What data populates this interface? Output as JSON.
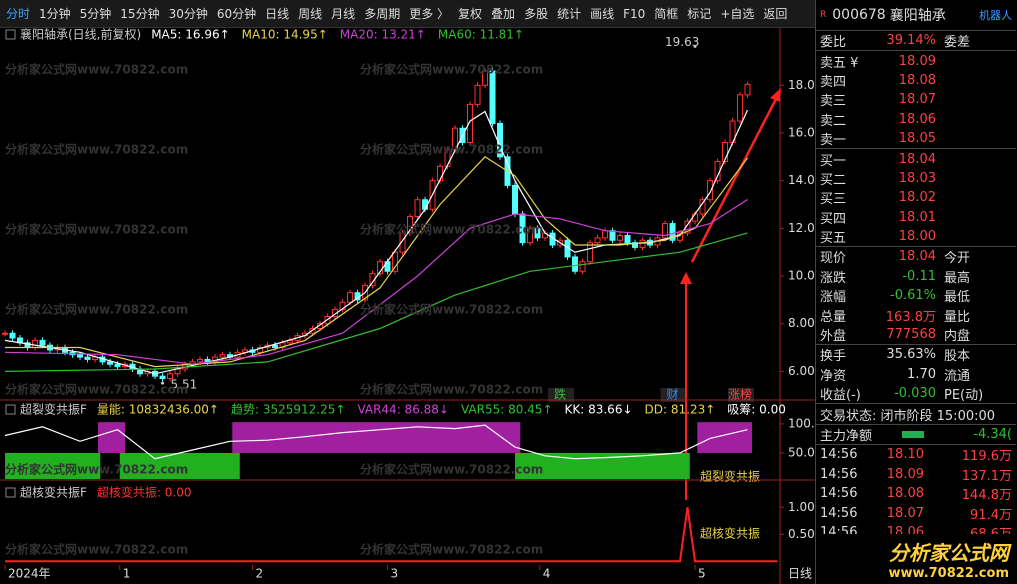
{
  "toolbar": {
    "tabs": [
      "分时",
      "1分钟",
      "5分钟",
      "15分钟",
      "30分钟",
      "60分钟",
      "日线",
      "周线",
      "月线",
      "多周期",
      "更多 〉",
      "复权",
      "叠加",
      "多股",
      "统计",
      "画线",
      "F10",
      "简框",
      "标记",
      "+自选",
      "返回"
    ]
  },
  "watermark": "分析家公式网www.70822.com",
  "logo": {
    "title": "分析家公式网",
    "url": "www.70822.com"
  },
  "chart_data": [
    {
      "type": "candlestick",
      "title": "襄阳轴承(日线,前复权)",
      "header": [
        "MA5: 16.96↑",
        "MA10: 14.95↑",
        "MA20: 13.21↑",
        "MA60: 11.81↑"
      ],
      "xlim": [
        -0.67,
        103.33
      ],
      "ylim": [
        4.8,
        19.9
      ],
      "yticks": [
        {
          "value": 6,
          "label": "6.00"
        },
        {
          "value": 8,
          "label": "8.00"
        },
        {
          "value": 10,
          "label": "10.00"
        },
        {
          "value": 12,
          "label": "12.00"
        },
        {
          "value": 14,
          "label": "14.00"
        },
        {
          "value": 16,
          "label": "16.00"
        },
        {
          "value": 18,
          "label": "18.00"
        }
      ],
      "xticks": [
        {
          "value": 0,
          "label": "2024年"
        },
        {
          "value": 15.3,
          "label": "1"
        },
        {
          "value": 33,
          "label": "2"
        },
        {
          "value": 51,
          "label": "3"
        },
        {
          "value": 71.3,
          "label": "4"
        },
        {
          "value": 92,
          "label": "5"
        }
      ],
      "period_label": "日线",
      "closes": [
        7.6,
        7.4,
        7.2,
        7.0,
        7.3,
        7.1,
        6.9,
        7.0,
        6.8,
        6.7,
        6.6,
        6.5,
        6.6,
        6.4,
        6.3,
        6.2,
        6.3,
        6.1,
        5.9,
        6.0,
        5.8,
        5.7,
        5.9,
        6.1,
        6.3,
        6.4,
        6.5,
        6.4,
        6.6,
        6.7,
        6.6,
        6.8,
        6.9,
        6.8,
        7.0,
        7.1,
        7.0,
        7.2,
        7.3,
        7.5,
        7.6,
        7.8,
        8.0,
        8.3,
        8.6,
        8.9,
        9.3,
        9.0,
        9.6,
        10.1,
        10.6,
        10.2,
        11.0,
        11.8,
        12.5,
        13.2,
        12.8,
        14.0,
        14.6,
        15.3,
        16.2,
        15.6,
        17.2,
        18.0,
        18.6,
        16.4,
        15.0,
        13.8,
        12.6,
        11.4,
        12.0,
        11.6,
        11.8,
        11.3,
        11.5,
        10.8,
        10.2,
        10.6,
        11.4,
        11.6,
        11.9,
        11.5,
        11.7,
        11.4,
        11.2,
        11.5,
        11.3,
        11.6,
        12.2,
        11.5,
        11.8,
        12.3,
        12.6,
        13.2,
        14.0,
        14.8,
        15.6,
        16.5,
        17.6,
        18.04
      ],
      "series": [
        {
          "name": "MA5",
          "color": "#ffffff",
          "x": [
            0,
            10,
            20,
            30,
            40,
            48,
            56,
            62,
            64,
            68,
            72,
            76,
            80,
            86,
            90,
            94,
            99
          ],
          "values": [
            7.3,
            6.8,
            5.9,
            6.6,
            7.5,
            9.3,
            12.8,
            16.5,
            16.9,
            14.0,
            11.8,
            11.0,
            11.3,
            11.4,
            11.7,
            13.5,
            16.96
          ]
        },
        {
          "name": "MA10",
          "color": "#e8d44a",
          "x": [
            0,
            10,
            20,
            30,
            40,
            50,
            58,
            64,
            68,
            72,
            76,
            82,
            88,
            92,
            99
          ],
          "values": [
            7.0,
            7.0,
            6.2,
            6.4,
            7.3,
            9.5,
            13.0,
            15.0,
            14.2,
            12.4,
            11.3,
            11.3,
            11.5,
            12.0,
            14.95
          ]
        },
        {
          "name": "MA20",
          "color": "#d040d8",
          "x": [
            0,
            15,
            25,
            35,
            45,
            55,
            62,
            68,
            74,
            80,
            88,
            94,
            99
          ],
          "values": [
            6.8,
            6.7,
            6.3,
            6.7,
            7.6,
            10.0,
            12.0,
            12.6,
            12.4,
            11.9,
            11.7,
            12.2,
            13.21
          ]
        },
        {
          "name": "MA60",
          "color": "#30c030",
          "x": [
            0,
            20,
            35,
            50,
            60,
            70,
            80,
            90,
            99
          ],
          "values": [
            6.0,
            6.1,
            6.4,
            7.8,
            9.2,
            10.2,
            10.6,
            11.0,
            11.81
          ]
        }
      ],
      "annotations": [
        {
          "text": "19.63",
          "x": 92,
          "y": 19.63
        },
        {
          "text": "5.51",
          "x": 21,
          "y": 5.51
        }
      ],
      "tags": [
        {
          "text": "跌",
          "x": 74,
          "color": "#30c030"
        },
        {
          "text": "财",
          "x": 89,
          "color": "#3090ff"
        },
        {
          "text": "涨榜",
          "x": 98,
          "color": "#ff4040"
        }
      ]
    },
    {
      "type": "line",
      "title": "超裂变共振F",
      "header": [
        "量能: 10832436.00↑",
        "趋势: 3525912.25↑",
        "VAR44: 86.88↓",
        "VAR55: 80.45↑",
        "KK: 83.66↓",
        "DD: 81.23↑",
        "吸筹: 0.00"
      ],
      "xlim": [
        -0.67,
        103.33
      ],
      "ylim": [
        3.4,
        136
      ],
      "yticks": [
        {
          "value": 100,
          "label": "100.0"
        },
        {
          "value": 50,
          "label": "50.00"
        }
      ],
      "zones": [
        {
          "color": "#a020a0",
          "start": 12.4,
          "end": 16
        },
        {
          "color": "#a020a0",
          "start": 30.3,
          "end": 68.7
        },
        {
          "color": "#a020a0",
          "start": 92.3,
          "end": 99.6
        },
        {
          "color": "#20b020",
          "start": 0,
          "end": 12.7
        },
        {
          "color": "#20b020",
          "start": 15.3,
          "end": 31.3
        },
        {
          "color": "#20b020",
          "start": 68,
          "end": 91.3
        }
      ],
      "series": [
        {
          "color": "#ffffff",
          "x": [
            0,
            5,
            10,
            15,
            20,
            25,
            30,
            35,
            40,
            45,
            50,
            55,
            60,
            64,
            68,
            72,
            76,
            80,
            85,
            90,
            94,
            99
          ],
          "values": [
            80,
            95,
            70,
            90,
            40,
            55,
            70,
            72,
            78,
            85,
            90,
            95,
            92,
            98,
            60,
            45,
            40,
            42,
            45,
            50,
            75,
            90
          ]
        }
      ],
      "annotation": "超裂变共振"
    },
    {
      "type": "line",
      "title": "超核变共振F",
      "header": [
        "超核变共振: 0.00"
      ],
      "xlim": [
        -0.67,
        103.33
      ],
      "ylim": [
        -0.07,
        1.45
      ],
      "yticks": [
        {
          "value": 1,
          "label": "1.00"
        },
        {
          "value": 0.5,
          "label": "0.50"
        }
      ],
      "series": [
        {
          "color": "#ff2020",
          "x": [
            0,
            90,
            91,
            92,
            103
          ],
          "values": [
            0,
            0,
            1,
            0,
            0
          ]
        }
      ],
      "annotation": "超核变共振"
    }
  ],
  "quote_panel": {
    "badge": "R",
    "code": "000678",
    "name": "襄阳轴承",
    "extra": "机器人",
    "ratio": {
      "label": "委比",
      "value": "39.14%",
      "label2": "委差"
    },
    "asks": [
      [
        "卖五 ¥",
        "18.09"
      ],
      [
        "卖四",
        "18.08"
      ],
      [
        "卖三",
        "18.07"
      ],
      [
        "卖二",
        "18.06"
      ],
      [
        "卖一",
        "18.05"
      ]
    ],
    "bids": [
      [
        "买一",
        "18.04"
      ],
      [
        "买二",
        "18.03"
      ],
      [
        "买三",
        "18.02"
      ],
      [
        "买四",
        "18.01"
      ],
      [
        "买五",
        "18.00"
      ]
    ],
    "stats": [
      [
        "现价",
        "18.04",
        "今开"
      ],
      [
        "涨跌",
        "-0.11",
        "最高"
      ],
      [
        "涨幅",
        "-0.61%",
        "最低"
      ],
      [
        "总量",
        "163.8万",
        "量比"
      ],
      [
        "外盘",
        "777568",
        "内盘"
      ]
    ],
    "stats2": [
      [
        "换手",
        "35.63%",
        "股本"
      ],
      [
        "净资",
        "1.70",
        "流通"
      ],
      [
        "收益(-)",
        "-0.030",
        "PE(动)"
      ]
    ],
    "status": "交易状态: 闭市阶段 15:00:00",
    "net": {
      "label": "主力净额",
      "value": "-4.34("
    },
    "trades": [
      [
        "14:56",
        "18.10",
        "119.6万"
      ],
      [
        "14:56",
        "18.09",
        "137.1万"
      ],
      [
        "14:56",
        "18.08",
        "144.8万"
      ],
      [
        "14:56",
        "18.07",
        "91.4万"
      ],
      [
        "14:56",
        "18.06",
        "68.6万"
      ]
    ]
  }
}
